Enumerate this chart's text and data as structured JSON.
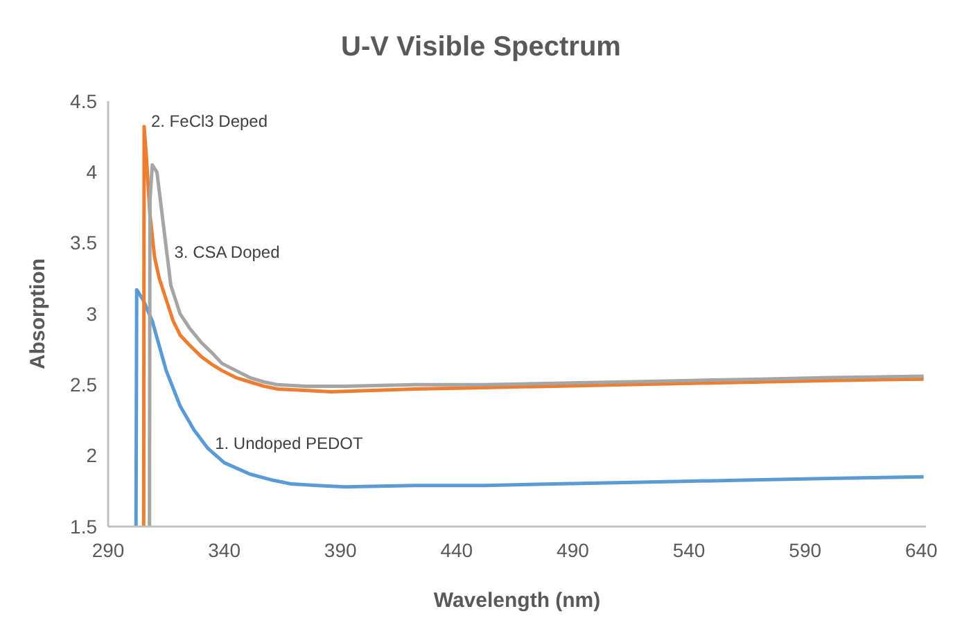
{
  "chart_data": {
    "type": "line",
    "title": "U-V Visible Spectrum",
    "xlabel": "Wavelength (nm)",
    "ylabel": "Absorption",
    "xlim": [
      290,
      642
    ],
    "xticks": [
      290,
      340,
      390,
      440,
      490,
      540,
      590,
      640
    ],
    "ylim": [
      1.5,
      4.5
    ],
    "yticks": [
      1.5,
      2,
      2.5,
      3,
      3.5,
      4,
      4.5
    ],
    "grid": false,
    "series": [
      {
        "color": "#5b9bd5",
        "x": [
          302,
          302.3,
          305,
          309,
          315,
          321,
          327,
          333,
          340,
          351,
          360,
          369,
          380,
          392,
          422,
          452,
          482,
          512,
          541,
          571,
          601,
          641
        ],
        "values": [
          1.5,
          3.17,
          3.1,
          2.95,
          2.6,
          2.35,
          2.18,
          2.05,
          1.95,
          1.87,
          1.83,
          1.8,
          1.79,
          1.78,
          1.79,
          1.79,
          1.8,
          1.81,
          1.82,
          1.83,
          1.84,
          1.85
        ]
      },
      {
        "color": "#ed7d31",
        "x": [
          305.3,
          305.5,
          306.5,
          308,
          310,
          312,
          315,
          318,
          321,
          325,
          330,
          335,
          339,
          345,
          351,
          357,
          363,
          375,
          386,
          404,
          422,
          452,
          482,
          512,
          541,
          571,
          601,
          641
        ],
        "values": [
          1.5,
          4.32,
          4.1,
          3.7,
          3.4,
          3.25,
          3.1,
          2.95,
          2.85,
          2.78,
          2.7,
          2.64,
          2.6,
          2.55,
          2.52,
          2.49,
          2.47,
          2.46,
          2.45,
          2.46,
          2.47,
          2.48,
          2.49,
          2.5,
          2.51,
          2.52,
          2.53,
          2.54
        ]
      },
      {
        "color": "#a5a5a5",
        "x": [
          307.8,
          308,
          309,
          311,
          314,
          317,
          321,
          325,
          330,
          335,
          339,
          345,
          351,
          357,
          363,
          375,
          392,
          422,
          452,
          482,
          512,
          541,
          571,
          601,
          641
        ],
        "values": [
          1.5,
          3.8,
          4.05,
          4.0,
          3.6,
          3.2,
          3.0,
          2.9,
          2.8,
          2.72,
          2.65,
          2.6,
          2.55,
          2.52,
          2.5,
          2.49,
          2.49,
          2.5,
          2.5,
          2.51,
          2.52,
          2.53,
          2.54,
          2.55,
          2.56
        ]
      }
    ],
    "annotations": [
      {
        "text": "2. FeCl3 Deped",
        "x": 305.5,
        "y": 4.32
      },
      {
        "text": "3. CSA Doped",
        "x": 315.5,
        "y": 3.4
      },
      {
        "text": "1. Undoped PEDOT",
        "x": 333,
        "y": 2.05
      }
    ]
  }
}
